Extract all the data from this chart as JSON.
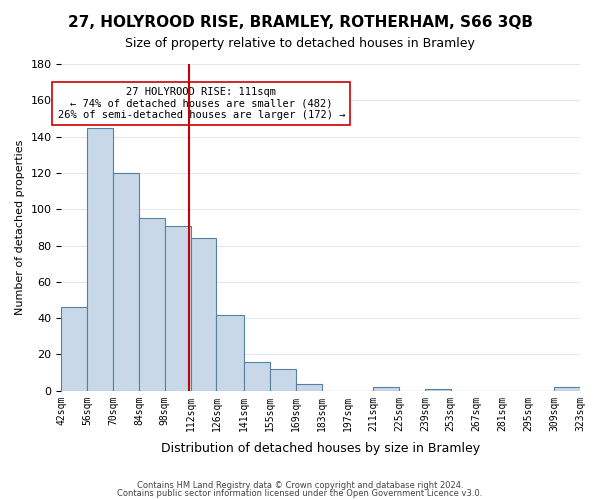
{
  "title": "27, HOLYROOD RISE, BRAMLEY, ROTHERHAM, S66 3QB",
  "subtitle": "Size of property relative to detached houses in Bramley",
  "xlabel": "Distribution of detached houses by size in Bramley",
  "ylabel": "Number of detached properties",
  "bar_color": "#c8d8e8",
  "bar_edge_color": "#5580a0",
  "bins": [
    42,
    56,
    70,
    84,
    98,
    112,
    126,
    141,
    155,
    169,
    183,
    197,
    211,
    225,
    239,
    253,
    267,
    281,
    295,
    309,
    323
  ],
  "counts": [
    46,
    145,
    120,
    95,
    91,
    84,
    42,
    16,
    12,
    4,
    0,
    0,
    2,
    0,
    1,
    0,
    0,
    0,
    0,
    2
  ],
  "tick_labels": [
    "42sqm",
    "56sqm",
    "70sqm",
    "84sqm",
    "98sqm",
    "112sqm",
    "126sqm",
    "141sqm",
    "155sqm",
    "169sqm",
    "183sqm",
    "197sqm",
    "211sqm",
    "225sqm",
    "239sqm",
    "253sqm",
    "267sqm",
    "281sqm",
    "295sqm",
    "309sqm",
    "323sqm"
  ],
  "reference_line_x": 111,
  "reference_line_color": "#cc0000",
  "annotation_title": "27 HOLYROOD RISE: 111sqm",
  "annotation_line1": "← 74% of detached houses are smaller (482)",
  "annotation_line2": "26% of semi-detached houses are larger (172) →",
  "annotation_box_color": "#ffffff",
  "annotation_box_edge_color": "#cc0000",
  "ylim": [
    0,
    180
  ],
  "yticks": [
    0,
    20,
    40,
    60,
    80,
    100,
    120,
    140,
    160,
    180
  ],
  "footer1": "Contains HM Land Registry data © Crown copyright and database right 2024.",
  "footer2": "Contains public sector information licensed under the Open Government Licence v3.0.",
  "background_color": "#ffffff",
  "grid_color": "#e0e8f0"
}
